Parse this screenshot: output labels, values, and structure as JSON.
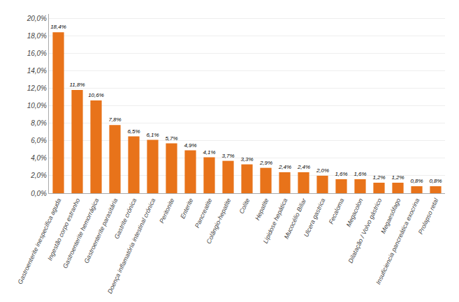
{
  "chart_data": {
    "type": "bar",
    "categories": [
      "Gastroenterite inespecífica aguda",
      "Ingestão corpo estranho",
      "Gastroenterite hemorrágica",
      "Gastroenterite parasitária",
      "Gastrite crónica",
      "Doença inflamatória intestinal crónica",
      "Peritonite",
      "Enterite",
      "Pancreatite",
      "Colângio-hepatite",
      "Colite",
      "Hepatite",
      "Lipidose hepática",
      "Mucocélio Biliar",
      "Ulcera gastrica",
      "Fecaloma",
      "Megacolon",
      "Dilatação / Volvo gástrico",
      "Megaesófago",
      "Insuficiencia pancreática exocrina",
      "Prolapso retal"
    ],
    "values": [
      18.4,
      11.8,
      10.6,
      7.8,
      6.5,
      6.1,
      5.7,
      4.9,
      4.1,
      3.7,
      3.3,
      2.9,
      2.4,
      2.4,
      2.0,
      1.6,
      1.6,
      1.2,
      1.2,
      0.8,
      0.8
    ],
    "value_labels": [
      "18,4%",
      "11,8%",
      "10,6%",
      "7,8%",
      "6,5%",
      "6,1%",
      "5,7%",
      "4,9%",
      "4,1%",
      "3,7%",
      "3,3%",
      "2,9%",
      "2,4%",
      "2,4%",
      "2,0%",
      "1,6%",
      "1,6%",
      "1,2%",
      "1,2%",
      "0,8%",
      "0,8%"
    ],
    "data_labels": true,
    "color": "#E8731A",
    "ylim": [
      0,
      20.5
    ],
    "yticks": [
      {
        "value": 0.0,
        "label": "0,0%"
      },
      {
        "value": 2.0,
        "label": "2,0%"
      },
      {
        "value": 4.0,
        "label": "4,0%"
      },
      {
        "value": 6.0,
        "label": "6,0%"
      },
      {
        "value": 8.0,
        "label": "8,0%"
      },
      {
        "value": 10.0,
        "label": "10,0%"
      },
      {
        "value": 12.0,
        "label": "12,0%"
      },
      {
        "value": 14.0,
        "label": "14,0%"
      },
      {
        "value": 16.0,
        "label": "16,0%"
      },
      {
        "value": 18.0,
        "label": "18,0%"
      },
      {
        "value": 20.0,
        "label": "20,0%"
      }
    ],
    "grid": true
  }
}
